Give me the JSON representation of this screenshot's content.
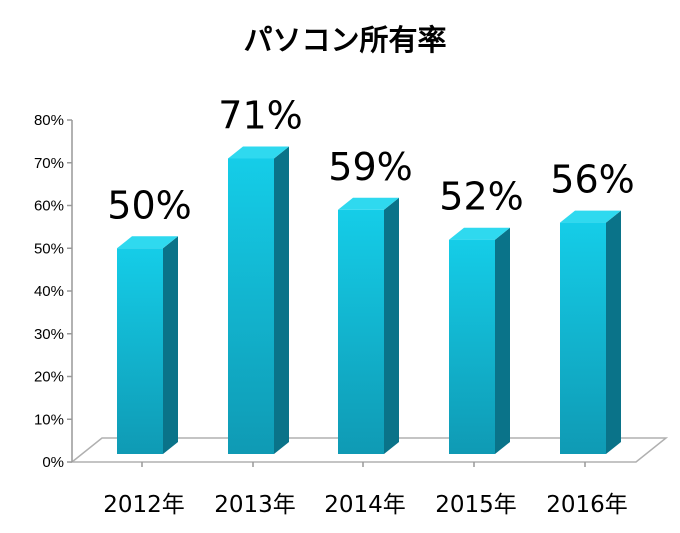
{
  "chart_data": {
    "type": "bar",
    "title": "パソコン所有率",
    "categories": [
      "2012年",
      "2013年",
      "2014年",
      "2015年",
      "2016年"
    ],
    "values": [
      50,
      71,
      59,
      52,
      56
    ],
    "data_labels": [
      "50%",
      "71%",
      "59%",
      "52%",
      "56%"
    ],
    "y_ticks": [
      "0%",
      "10%",
      "20%",
      "30%",
      "40%",
      "50%",
      "60%",
      "70%",
      "80%"
    ],
    "ylim": [
      0,
      80
    ],
    "xlabel": "",
    "ylabel": "",
    "grid": false,
    "legend": "none",
    "style": "3d-column"
  },
  "colors": {
    "bar_front_top": "#15cde8",
    "bar_front_bottom": "#0f9ab4",
    "bar_side": "#0a7389",
    "bar_top": "#2fd9ef",
    "floor_stroke": "#b0b0b0",
    "axis": "#999999"
  }
}
